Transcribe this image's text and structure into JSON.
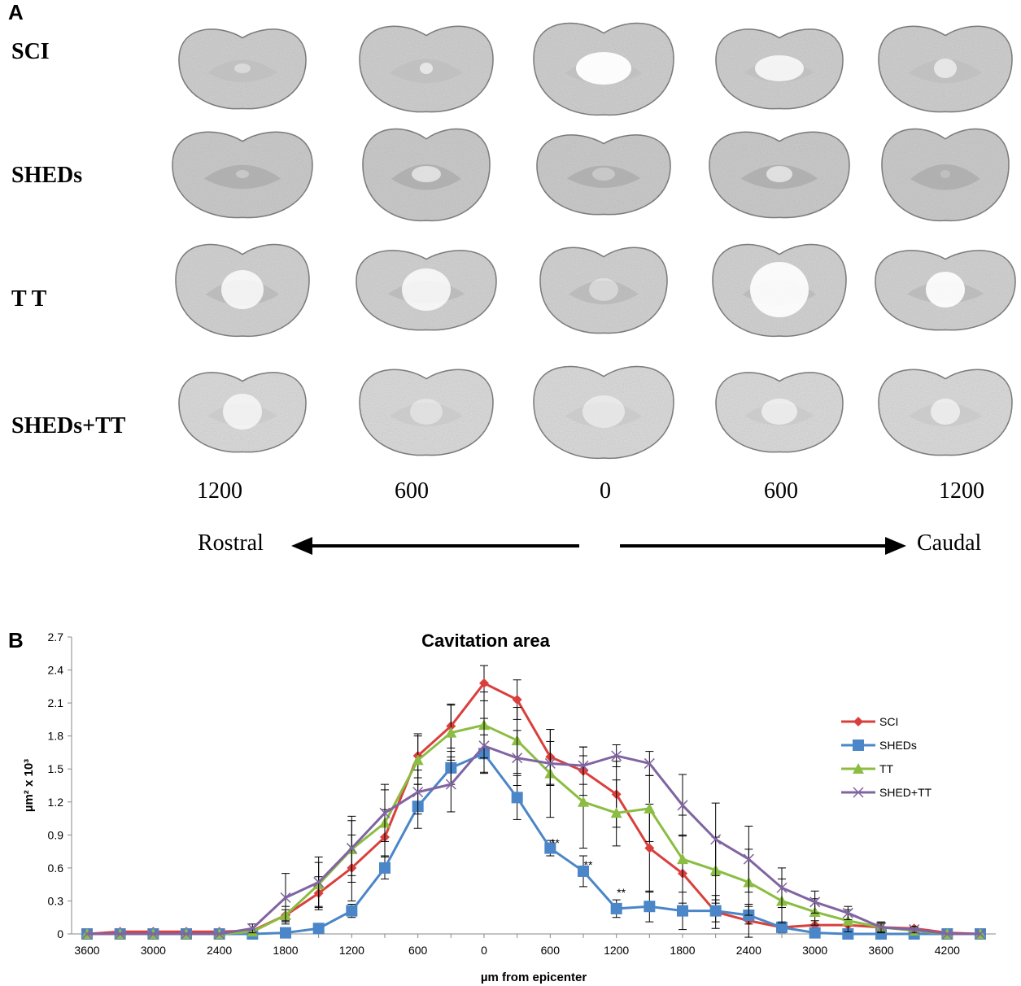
{
  "panelA": {
    "letter": "A",
    "rows": [
      {
        "label": "SCI"
      },
      {
        "label": "SHEDs"
      },
      {
        "label": "T T"
      },
      {
        "label": "SHEDs+TT"
      }
    ],
    "positions": [
      "1200",
      "600",
      "0",
      "600",
      "1200"
    ],
    "direction": {
      "left": "Rostral",
      "right": "Caudal"
    }
  },
  "panelB": {
    "letter": "B",
    "stars": [
      "**",
      "**",
      "**"
    ]
  },
  "chart_data": {
    "type": "line",
    "title": "Cavitation area",
    "xlabel": "µm from epicenter",
    "ylabel": "µm² x 10³",
    "ylim": [
      0,
      2.7
    ],
    "yticks": [
      "0",
      "0.3",
      "0.6",
      "0.9",
      "1.2",
      "1.5",
      "1.8",
      "2.1",
      "2.4",
      "2.7"
    ],
    "x": [
      -3600,
      -3300,
      -3000,
      -2700,
      -2400,
      -2100,
      -1800,
      -1500,
      -1200,
      -900,
      -600,
      -300,
      0,
      300,
      600,
      900,
      1200,
      1500,
      1800,
      2100,
      2400,
      2700,
      3000,
      3300,
      3600,
      3900,
      4200,
      4500
    ],
    "xticks": [
      "3600",
      "3000",
      "2400",
      "1800",
      "1200",
      "600",
      "0",
      "600",
      "1200",
      "1800",
      "2400",
      "3000",
      "3600",
      "4200"
    ],
    "grid": false,
    "legend_position": "right",
    "series": [
      {
        "name": "SCI",
        "color": "#d9403d",
        "marker": "diamond",
        "values": [
          0,
          0.02,
          0.02,
          0.02,
          0.02,
          0.03,
          0.17,
          0.37,
          0.6,
          0.88,
          1.62,
          1.89,
          2.28,
          2.13,
          1.61,
          1.48,
          1.27,
          0.78,
          0.55,
          0.2,
          0.12,
          0.06,
          0.08,
          0.08,
          0.06,
          0.05,
          0.01,
          0
        ],
        "errors": [
          0,
          0,
          0,
          0,
          0,
          0,
          0.05,
          0.15,
          0.3,
          0.25,
          0.2,
          0.2,
          0.16,
          0.18,
          0.25,
          0.22,
          0.3,
          0.4,
          0.35,
          0.15,
          0.15,
          0.05,
          0.04,
          0.04,
          0.03,
          0.02,
          0,
          0
        ]
      },
      {
        "name": "SHEDs",
        "color": "#4a86c8",
        "marker": "square",
        "values": [
          0,
          0,
          0,
          0,
          0,
          0,
          0.01,
          0.05,
          0.21,
          0.6,
          1.16,
          1.51,
          1.64,
          1.24,
          0.78,
          0.57,
          0.23,
          0.25,
          0.21,
          0.21,
          0.17,
          0.06,
          0.01,
          0,
          0,
          0,
          0,
          0
        ],
        "errors": [
          0,
          0,
          0,
          0,
          0,
          0,
          0,
          0.02,
          0.06,
          0.1,
          0.2,
          0.15,
          0.17,
          0.2,
          0.07,
          0.14,
          0.08,
          0.14,
          0.17,
          0.1,
          0.08,
          0.04,
          0.01,
          0,
          0,
          0,
          0,
          0
        ]
      },
      {
        "name": "TT",
        "color": "#8bbd42",
        "marker": "triangle",
        "values": [
          0,
          0,
          0,
          0,
          0,
          0.02,
          0.17,
          0.45,
          0.77,
          1.01,
          1.58,
          1.83,
          1.9,
          1.76,
          1.46,
          1.2,
          1.1,
          1.14,
          0.68,
          0.58,
          0.47,
          0.3,
          0.2,
          0.12,
          0.06,
          0.03,
          0,
          0
        ],
        "errors": [
          0,
          0,
          0,
          0,
          0,
          0.02,
          0.08,
          0.2,
          0.3,
          0.3,
          0.22,
          0.25,
          0.3,
          0.3,
          0.4,
          0.42,
          0.3,
          0.3,
          0.4,
          0.3,
          0.3,
          0.2,
          0.12,
          0.1,
          0.05,
          0.03,
          0,
          0
        ]
      },
      {
        "name": "SHED+TT",
        "color": "#8064a2",
        "marker": "x",
        "values": [
          0,
          0,
          0,
          0,
          0,
          0.05,
          0.33,
          0.47,
          0.78,
          1.1,
          1.29,
          1.36,
          1.71,
          1.6,
          1.55,
          1.53,
          1.62,
          1.55,
          1.17,
          0.86,
          0.68,
          0.42,
          0.29,
          0.19,
          0.06,
          0.04,
          0,
          0
        ],
        "errors": [
          0,
          0,
          0,
          0,
          0,
          0.04,
          0.22,
          0.23,
          0.25,
          0.26,
          0.2,
          0.25,
          0.25,
          0.25,
          0.2,
          0.17,
          0.1,
          0.11,
          0.28,
          0.33,
          0.3,
          0.18,
          0.1,
          0.06,
          0.04,
          0.03,
          0,
          0
        ]
      }
    ]
  }
}
